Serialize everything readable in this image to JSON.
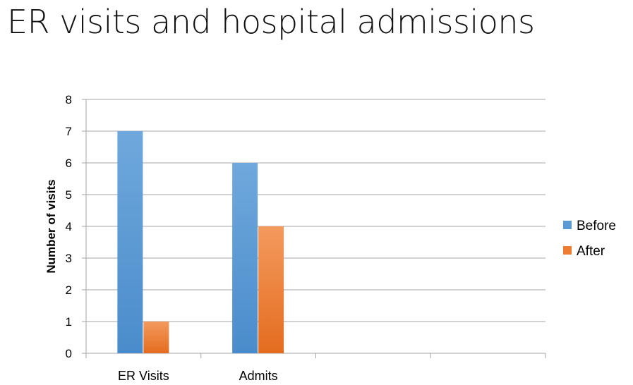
{
  "slide": {
    "title": "ER visits and hospital admissions"
  },
  "colors": {
    "before": "#5b9bd5",
    "before_light": "#6fa8dc",
    "after": "#ed7d31",
    "after_light": "#f39a5e",
    "grid": "#a6a6a6"
  },
  "chart_data": {
    "type": "bar",
    "title": "",
    "xlabel": "",
    "ylabel": "Number of visits",
    "ylim": [
      0,
      8
    ],
    "yticks": [
      0,
      1,
      2,
      3,
      4,
      5,
      6,
      7,
      8
    ],
    "categories": [
      "ER Visits",
      "Admits",
      "",
      ""
    ],
    "series": [
      {
        "name": "Before",
        "values": [
          7,
          6,
          null,
          null
        ]
      },
      {
        "name": "After",
        "values": [
          1,
          4,
          null,
          null
        ]
      }
    ],
    "grid": true,
    "legend": "right"
  }
}
